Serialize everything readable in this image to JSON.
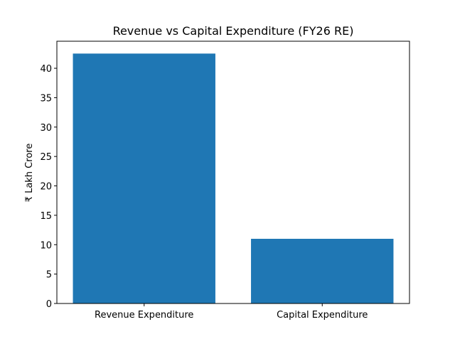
{
  "chart_data": {
    "type": "bar",
    "title": "Revenue vs Capital Expenditure (FY26 RE)",
    "xlabel": "",
    "ylabel": "₹ Lakh Crore",
    "categories": [
      "Revenue Expenditure",
      "Capital Expenditure"
    ],
    "values": [
      42.5,
      11.0
    ],
    "ylim": [
      0,
      44.6
    ],
    "yticks": [
      0,
      5,
      10,
      15,
      20,
      25,
      30,
      35,
      40
    ],
    "grid": false,
    "bar_color": "#1f77b4"
  }
}
